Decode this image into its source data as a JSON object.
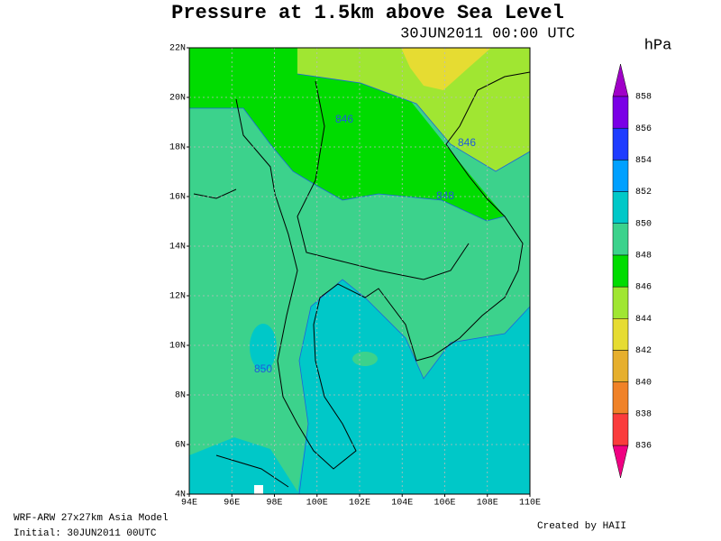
{
  "title": "Pressure at 1.5km above Sea Level",
  "subtitle": "30JUN2011 00:00 UTC",
  "map": {
    "lon_ticks": [
      {
        "value": 94,
        "label": "94E"
      },
      {
        "value": 96,
        "label": "96E"
      },
      {
        "value": 98,
        "label": "98E"
      },
      {
        "value": 100,
        "label": "100E"
      },
      {
        "value": 102,
        "label": "102E"
      },
      {
        "value": 104,
        "label": "104E"
      },
      {
        "value": 106,
        "label": "106E"
      },
      {
        "value": 108,
        "label": "108E"
      },
      {
        "value": 110,
        "label": "110E"
      }
    ],
    "lat_ticks": [
      {
        "value": 4,
        "label": "4N"
      },
      {
        "value": 6,
        "label": "6N"
      },
      {
        "value": 8,
        "label": "8N"
      },
      {
        "value": 10,
        "label": "10N"
      },
      {
        "value": 12,
        "label": "12N"
      },
      {
        "value": 14,
        "label": "14N"
      },
      {
        "value": 16,
        "label": "16N"
      },
      {
        "value": 18,
        "label": "18N"
      },
      {
        "value": 20,
        "label": "20N"
      },
      {
        "value": 22,
        "label": "22N"
      }
    ],
    "contour_labels": [
      "846",
      "846",
      "848",
      "850"
    ]
  },
  "colorbar": {
    "unit": "hPa",
    "levels": [
      836,
      838,
      840,
      842,
      844,
      846,
      848,
      850,
      852,
      854,
      856,
      858
    ],
    "colors": [
      "#f00082",
      "#fa3c3c",
      "#f08228",
      "#e6af2d",
      "#e6dc32",
      "#a0e632",
      "#00dc00",
      "#3cd28c",
      "#00c8c8",
      "#00a0ff",
      "#1e3cff",
      "#7a00e6",
      "#a000c8"
    ]
  },
  "footer": {
    "model": "WRF-ARW 27x27km Asia Model",
    "initial": "Initial: 30JUN2011 00UTC",
    "credit": "Created by HAII"
  }
}
